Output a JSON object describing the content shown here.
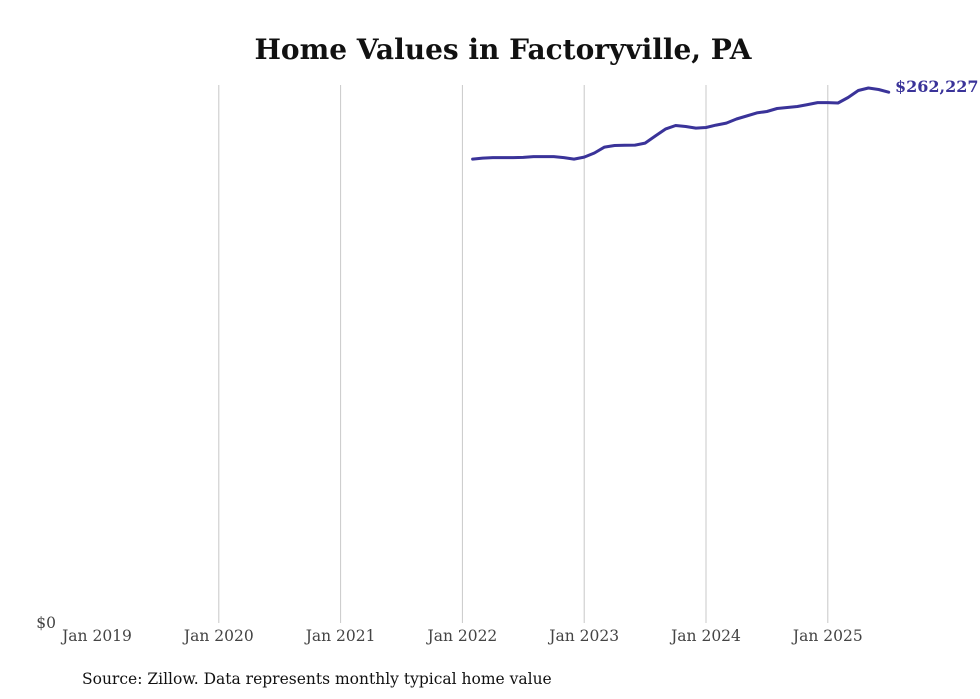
{
  "chart_data": {
    "type": "line",
    "title": "Home Values in Factoryville, PA",
    "xlabel": "",
    "ylabel": "",
    "x_ticks": [
      "Jan 2019",
      "Jan 2020",
      "Jan 2021",
      "Jan 2022",
      "Jan 2023",
      "Jan 2024",
      "Jan 2025"
    ],
    "y_ticks": [
      "$0"
    ],
    "ylim": [
      0,
      265800
    ],
    "x_start": "Feb 2022",
    "x_end": "Jul 2025",
    "grid": "vertical",
    "series": [
      {
        "name": "Typical home value",
        "color": "#3a3399",
        "values": [
          229200,
          229700,
          229950,
          229950,
          229950,
          230050,
          230450,
          230450,
          230450,
          229950,
          229200,
          230200,
          232200,
          235100,
          235900,
          236000,
          236100,
          237100,
          240600,
          244000,
          245800,
          245300,
          244500,
          244800,
          246000,
          247000,
          249000,
          250500,
          252000,
          252700,
          254200,
          254700,
          255200,
          256100,
          257100,
          257100,
          256900,
          259600,
          263100,
          264300,
          263600,
          262227
        ]
      }
    ],
    "end_label": "$262,227",
    "source": "Source: Zillow. Data represents monthly typical home value"
  }
}
